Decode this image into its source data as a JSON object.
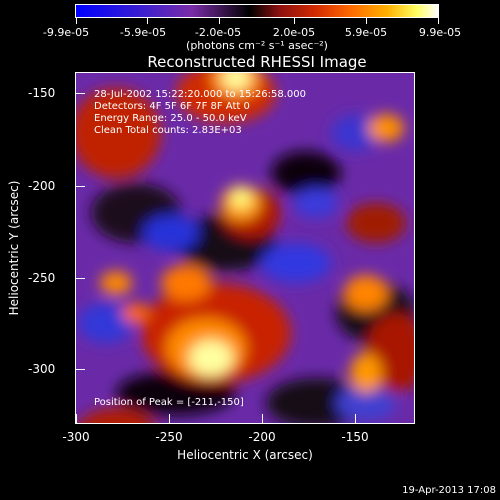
{
  "colorbar": {
    "labels": [
      "-9.9e-05",
      "-5.9e-05",
      "-2.0e-05",
      "2.0e-05",
      "5.9e-05",
      "9.9e-05"
    ],
    "units": "(photons cm⁻² s⁻¹ asec⁻²)"
  },
  "title": "Reconstructed RHESSI Image",
  "annotations": {
    "time_range": "28-Jul-2002 15:22:20.000 to 15:26:58.000",
    "detectors": "Detectors: 4F 5F 6F 7F 8F  Att 0",
    "energy_range": "Energy Range: 25.0 - 50.0 keV",
    "method_counts": "Clean    Total counts: 2.83E+03",
    "peak_position": "Position of Peak = [-211,-150]"
  },
  "axes": {
    "xlabel": "Heliocentric X (arcsec)",
    "ylabel": "Heliocentric Y (arcsec)",
    "xticks": [
      "-300",
      "-250",
      "-200",
      "-150"
    ],
    "yticks": [
      "-150",
      "-200",
      "-250",
      "-300"
    ]
  },
  "timestamp": "19-Apr-2013 17:08"
}
